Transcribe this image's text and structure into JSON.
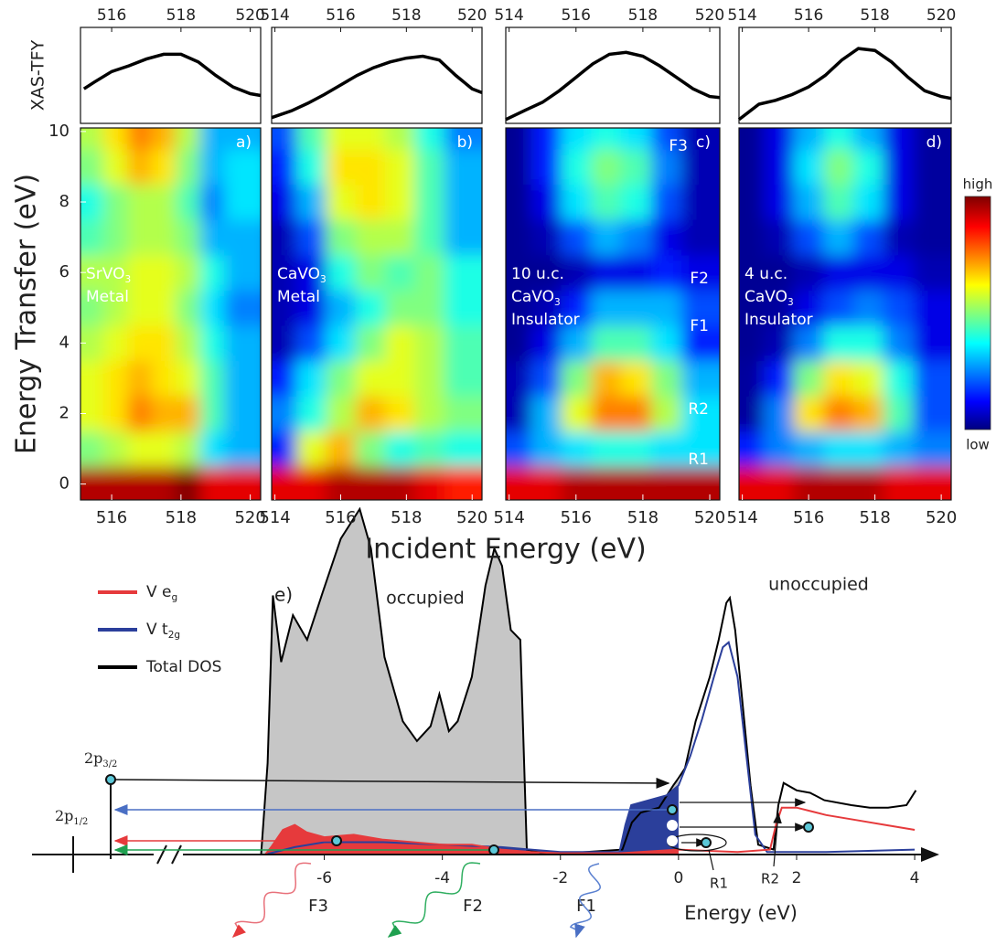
{
  "chart_data": [
    {
      "type": "line",
      "ylabel": "XAS-TFY",
      "x": [
        515.2,
        515.5,
        516,
        516.5,
        517,
        517.5,
        518,
        518.5,
        519,
        519.5,
        520,
        520.3
      ],
      "values": [
        36,
        43,
        54,
        60,
        67,
        72,
        72,
        64,
        50,
        38,
        31,
        29
      ],
      "xlim": [
        515.1,
        520.3
      ],
      "ylim": [
        0,
        100
      ],
      "xticks": [
        516,
        518,
        520
      ],
      "color": "#000000"
    },
    {
      "type": "line",
      "x": [
        513.9,
        514.5,
        515,
        515.5,
        516,
        516.5,
        517,
        517.5,
        518,
        518.5,
        519,
        519.5,
        520,
        520.3
      ],
      "values": [
        6,
        13,
        21,
        30,
        40,
        50,
        58,
        64,
        68,
        70,
        66,
        50,
        36,
        32
      ],
      "xlim": [
        513.9,
        520.3
      ],
      "ylim": [
        0,
        100
      ],
      "xticks": [
        514,
        516,
        518,
        520
      ],
      "color": "#000000"
    },
    {
      "type": "line",
      "x": [
        513.9,
        514.5,
        515,
        515.5,
        516,
        516.5,
        517,
        517.5,
        518,
        518.5,
        519,
        519.5,
        520,
        520.3
      ],
      "values": [
        4,
        14,
        22,
        34,
        48,
        62,
        72,
        74,
        70,
        60,
        48,
        36,
        28,
        27
      ],
      "xlim": [
        513.9,
        520.3
      ],
      "ylim": [
        0,
        100
      ],
      "xticks": [
        514,
        516,
        518,
        520
      ],
      "color": "#000000"
    },
    {
      "type": "line",
      "x": [
        513.9,
        514.5,
        515,
        515.5,
        516,
        516.5,
        517,
        517.5,
        518,
        518.5,
        519,
        519.5,
        520,
        520.3
      ],
      "values": [
        4,
        20,
        24,
        30,
        38,
        50,
        66,
        78,
        76,
        64,
        48,
        34,
        28,
        26
      ],
      "xlim": [
        513.9,
        520.3
      ],
      "ylim": [
        0,
        100
      ],
      "xticks": [
        514,
        516,
        518,
        520
      ],
      "color": "#000000"
    },
    {
      "type": "heatmap",
      "panel_label": "a)",
      "ylabel": "Energy Transfer (eV)",
      "xlabel": "Incident Energy (eV)",
      "annotations": [
        {
          "text": "SrVO",
          "sub": "3"
        },
        {
          "text": "Metal"
        }
      ],
      "x": [
        515.4,
        516.1,
        516.8,
        517.5,
        518.2,
        518.9,
        519.6
      ],
      "y": [
        0,
        1,
        2,
        3,
        4,
        5,
        6,
        7,
        8,
        9,
        10
      ],
      "z": [
        [
          0.95,
          0.95,
          0.95,
          0.95,
          1,
          0.9,
          0.9
        ],
        [
          0.5,
          0.55,
          0.6,
          0.6,
          0.55,
          0.35,
          0.3
        ],
        [
          0.6,
          0.65,
          0.75,
          0.7,
          0.7,
          0.45,
          0.3
        ],
        [
          0.6,
          0.65,
          0.7,
          0.65,
          0.6,
          0.45,
          0.3
        ],
        [
          0.55,
          0.6,
          0.65,
          0.65,
          0.55,
          0.4,
          0.3
        ],
        [
          0.5,
          0.55,
          0.6,
          0.6,
          0.5,
          0.35,
          0.25
        ],
        [
          0.55,
          0.55,
          0.6,
          0.6,
          0.55,
          0.4,
          0.3
        ],
        [
          0.45,
          0.5,
          0.55,
          0.55,
          0.5,
          0.3,
          0.3
        ],
        [
          0.4,
          0.5,
          0.55,
          0.55,
          0.45,
          0.25,
          0.35
        ],
        [
          0.5,
          0.6,
          0.7,
          0.65,
          0.5,
          0.3,
          0.35
        ],
        [
          0.55,
          0.65,
          0.75,
          0.7,
          0.55,
          0.3,
          0.3
        ]
      ],
      "xlim": [
        515.1,
        520.3
      ],
      "ylim": [
        -0.45,
        10.1
      ],
      "xticks": [
        516,
        518,
        520
      ],
      "yticks": [
        0,
        2,
        4,
        6,
        8,
        10
      ],
      "colormap": "jet"
    },
    {
      "type": "heatmap",
      "panel_label": "b)",
      "annotations": [
        {
          "text": "CaVO",
          "sub": "3"
        },
        {
          "text": "Metal"
        }
      ],
      "x": [
        514.2,
        515.1,
        516.0,
        516.9,
        517.8,
        518.7,
        519.6
      ],
      "y": [
        0,
        1,
        2,
        3,
        4,
        5,
        6,
        7,
        8,
        9,
        10
      ],
      "z": [
        [
          0.9,
          0.9,
          0.95,
          0.95,
          0.95,
          0.9,
          0.85
        ],
        [
          0.15,
          0.6,
          0.7,
          0.5,
          0.4,
          0.45,
          0.4
        ],
        [
          0.25,
          0.4,
          0.55,
          0.7,
          0.65,
          0.55,
          0.5
        ],
        [
          0.15,
          0.35,
          0.5,
          0.6,
          0.6,
          0.55,
          0.45
        ],
        [
          0.05,
          0.2,
          0.35,
          0.5,
          0.6,
          0.55,
          0.45
        ],
        [
          0.05,
          0.1,
          0.3,
          0.4,
          0.5,
          0.5,
          0.4
        ],
        [
          0.05,
          0.1,
          0.4,
          0.5,
          0.45,
          0.5,
          0.4
        ],
        [
          0.05,
          0.2,
          0.5,
          0.55,
          0.55,
          0.45,
          0.3
        ],
        [
          0.1,
          0.3,
          0.6,
          0.65,
          0.6,
          0.45,
          0.3
        ],
        [
          0.15,
          0.4,
          0.65,
          0.65,
          0.6,
          0.45,
          0.3
        ],
        [
          0.2,
          0.45,
          0.6,
          0.6,
          0.55,
          0.4,
          0.25
        ]
      ],
      "xlim": [
        513.9,
        520.3
      ],
      "ylim": [
        -0.45,
        10.1
      ],
      "xticks": [
        514,
        516,
        518,
        520
      ],
      "colormap": "jet"
    },
    {
      "type": "heatmap",
      "panel_label": "c)",
      "annotations": [
        {
          "text": "10 u.c."
        },
        {
          "text": "CaVO",
          "sub": "3"
        },
        {
          "text": "Insulator"
        }
      ],
      "features": [
        "F3",
        "F2",
        "F1",
        "R2",
        "R1"
      ],
      "x": [
        514.2,
        515.1,
        516.0,
        516.9,
        517.8,
        518.7,
        519.6
      ],
      "y": [
        0,
        1,
        2,
        3,
        4,
        5,
        6,
        7,
        8,
        9,
        10
      ],
      "z": [
        [
          0.9,
          0.9,
          0.95,
          0.95,
          0.95,
          0.95,
          0.95
        ],
        [
          0.2,
          0.3,
          0.35,
          0.4,
          0.4,
          0.35,
          0.35
        ],
        [
          0.05,
          0.3,
          0.6,
          0.75,
          0.75,
          0.55,
          0.35
        ],
        [
          0.05,
          0.2,
          0.5,
          0.7,
          0.65,
          0.5,
          0.3
        ],
        [
          0.02,
          0.1,
          0.3,
          0.45,
          0.45,
          0.35,
          0.15
        ],
        [
          0.02,
          0.05,
          0.15,
          0.3,
          0.3,
          0.3,
          0.2
        ],
        [
          0.02,
          0.02,
          0.05,
          0.1,
          0.1,
          0.15,
          0.1
        ],
        [
          0.02,
          0.05,
          0.2,
          0.3,
          0.25,
          0.1,
          0.05
        ],
        [
          0.02,
          0.1,
          0.35,
          0.45,
          0.4,
          0.2,
          0.05
        ],
        [
          0.02,
          0.15,
          0.4,
          0.5,
          0.45,
          0.25,
          0.05
        ],
        [
          0.02,
          0.15,
          0.35,
          0.4,
          0.35,
          0.2,
          0.05
        ]
      ],
      "xlim": [
        513.9,
        520.3
      ],
      "ylim": [
        -0.45,
        10.1
      ],
      "xticks": [
        514,
        516,
        518,
        520
      ],
      "colormap": "jet"
    },
    {
      "type": "heatmap",
      "panel_label": "d)",
      "annotations": [
        {
          "text": "4 u.c."
        },
        {
          "text": "CaVO",
          "sub": "3"
        },
        {
          "text": "Insulator"
        }
      ],
      "colorbar": {
        "high": "high",
        "low": "low"
      },
      "x": [
        514.2,
        515.1,
        516.0,
        516.9,
        517.8,
        518.7,
        519.6
      ],
      "y": [
        0,
        1,
        2,
        3,
        4,
        5,
        6,
        7,
        8,
        9,
        10
      ],
      "z": [
        [
          0.9,
          0.9,
          0.95,
          0.95,
          0.95,
          0.9,
          0.9
        ],
        [
          0.15,
          0.25,
          0.3,
          0.35,
          0.35,
          0.3,
          0.25
        ],
        [
          0.03,
          0.25,
          0.65,
          0.75,
          0.7,
          0.45,
          0.2
        ],
        [
          0.03,
          0.15,
          0.5,
          0.65,
          0.6,
          0.4,
          0.2
        ],
        [
          0.02,
          0.05,
          0.25,
          0.4,
          0.4,
          0.25,
          0.1
        ],
        [
          0.02,
          0.03,
          0.1,
          0.2,
          0.25,
          0.2,
          0.1
        ],
        [
          0.02,
          0.02,
          0.05,
          0.1,
          0.1,
          0.1,
          0.05
        ],
        [
          0.02,
          0.05,
          0.2,
          0.3,
          0.2,
          0.05,
          0.03
        ],
        [
          0.02,
          0.1,
          0.3,
          0.45,
          0.35,
          0.1,
          0.03
        ],
        [
          0.02,
          0.1,
          0.35,
          0.5,
          0.4,
          0.1,
          0.03
        ],
        [
          0.02,
          0.1,
          0.3,
          0.4,
          0.3,
          0.1,
          0.03
        ]
      ],
      "xlim": [
        513.9,
        520.3
      ],
      "ylim": [
        -0.45,
        10.1
      ],
      "xticks": [
        514,
        516,
        518,
        520
      ],
      "colormap": "jet"
    },
    {
      "type": "area",
      "panel_label": "e)",
      "xlabel": "Energy (eV)",
      "region_labels": [
        "occupied",
        "unoccupied"
      ],
      "transition_labels": [
        "F3",
        "F2",
        "F1",
        "R1",
        "R2"
      ],
      "core_levels": [
        {
          "text": "2p",
          "sub": "3/2"
        },
        {
          "text": "2p",
          "sub": "1/2"
        }
      ],
      "occupied_fill": "#c6c6c6",
      "xlim": [
        -7,
        4.2
      ],
      "ylim": [
        0,
        140
      ],
      "xticks": [
        -6,
        -4,
        -2,
        0,
        2,
        4
      ],
      "series": [
        {
          "name": "V e",
          "name_sub": "g",
          "color": "#e63a3c",
          "x": [
            -7,
            -6.9,
            -6.7,
            -6.5,
            -6.3,
            -6.0,
            -5.5,
            -5.0,
            -4.5,
            -4.0,
            -3.5,
            -3.0,
            -2.5,
            -2.0,
            -1.0,
            0,
            1.0,
            1.55,
            1.65,
            1.75,
            2.0,
            2.5,
            3.0,
            3.5,
            4.0
          ],
          "values": [
            0,
            3,
            10,
            12,
            9,
            7,
            8,
            6,
            5,
            4,
            4,
            2,
            1,
            0.5,
            0.5,
            2,
            1,
            2,
            12,
            19,
            19,
            16,
            14,
            12,
            10
          ]
        },
        {
          "name": "V t",
          "name_sub": "2g",
          "color": "#2b3f9b",
          "x": [
            -7,
            -6.5,
            -6,
            -5,
            -4,
            -3,
            -2.5,
            -2,
            -1.0,
            -0.9,
            -0.8,
            -0.5,
            -0.2,
            0,
            0.2,
            0.4,
            0.6,
            0.75,
            0.85,
            1.0,
            1.15,
            1.3,
            1.5,
            2.5,
            4.0
          ],
          "values": [
            0,
            3,
            5,
            5,
            4,
            3,
            2,
            1,
            1,
            12,
            20,
            22,
            24,
            28,
            40,
            55,
            72,
            84,
            86,
            72,
            40,
            8,
            1,
            1,
            2
          ]
        },
        {
          "name": "Total DOS",
          "color": "#000000",
          "x": [
            -7.07,
            -6.96,
            -6.87,
            -6.73,
            -6.53,
            -6.29,
            -6.03,
            -5.72,
            -5.4,
            -5.21,
            -4.98,
            -4.67,
            -4.43,
            -4.2,
            -4.05,
            -3.89,
            -3.74,
            -3.5,
            -3.27,
            -3.12,
            -2.99,
            -2.84,
            -2.68,
            -2.57,
            -2.2,
            -0.95,
            -0.79,
            -0.64,
            -0.33,
            -0.09,
            0,
            0.11,
            0.29,
            0.53,
            0.68,
            0.81,
            0.87,
            0.96,
            1.07,
            1.22,
            1.35,
            1.61,
            1.69,
            1.78,
            2.0,
            2.23,
            2.47,
            2.93,
            3.24,
            3.55,
            3.86,
            4.02
          ],
          "values": [
            0,
            37,
            105,
            78,
            97,
            87,
            106,
            128,
            140,
            124,
            80,
            54,
            46,
            52,
            65,
            50,
            54,
            72,
            109,
            124,
            117,
            91,
            87,
            2,
            0,
            2,
            13,
            17,
            19,
            28,
            31,
            35,
            54,
            72,
            87,
            102,
            104,
            91,
            65,
            28,
            4,
            2,
            20,
            29,
            26,
            25,
            22,
            20,
            19,
            19,
            20,
            26
          ]
        }
      ]
    }
  ]
}
